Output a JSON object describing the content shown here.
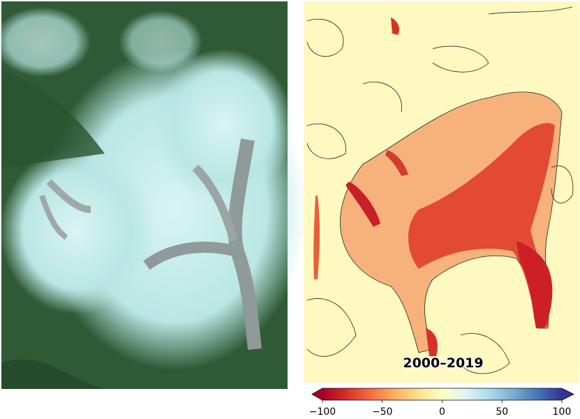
{
  "panels": {
    "right": {
      "period_label": "2000–2019"
    }
  },
  "colorbar": {
    "lim": [
      -100,
      100
    ],
    "ticks": [
      {
        "value": -100,
        "label": "−100"
      },
      {
        "value": -50,
        "label": "−50"
      },
      0,
      50,
      100
    ]
  }
}
